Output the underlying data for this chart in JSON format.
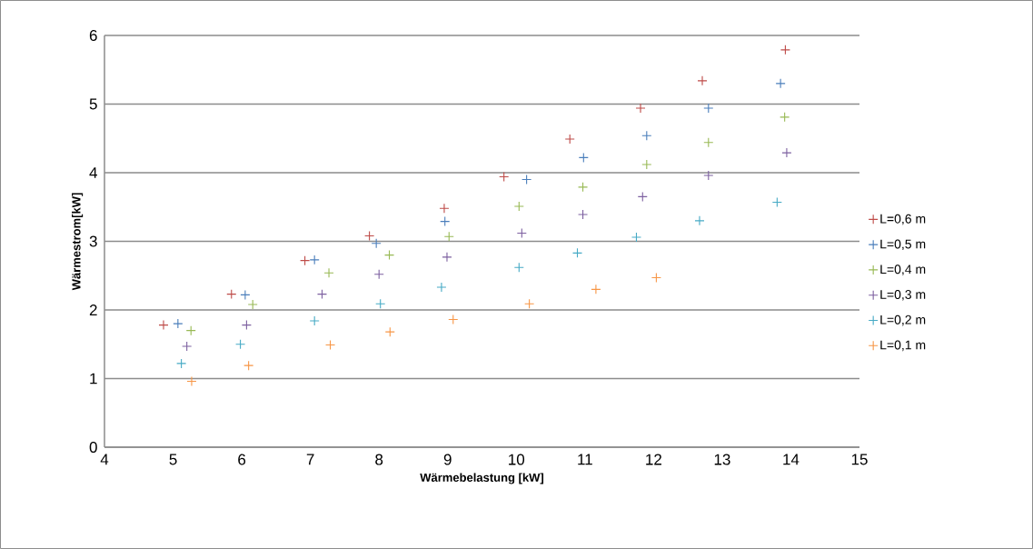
{
  "chart_data": {
    "type": "scatter",
    "xlabel": "Wärmebelastung [kW]",
    "ylabel": "Wärmestrom[kW]",
    "xlim": [
      4,
      15
    ],
    "xticks": [
      4,
      5,
      6,
      7,
      8,
      9,
      10,
      11,
      12,
      13,
      14,
      15
    ],
    "ylim": [
      0,
      6
    ],
    "yticks": [
      0,
      1,
      2,
      3,
      4,
      5,
      6
    ],
    "grid": "y",
    "legend": "right",
    "marker": "cross",
    "series": [
      {
        "name": "L=0,6 m",
        "color": "#be4b48",
        "x": [
          4.86,
          5.85,
          6.92,
          7.86,
          8.95,
          9.82,
          10.78,
          11.81,
          12.71,
          13.92
        ],
        "values": [
          1.78,
          2.23,
          2.72,
          3.08,
          3.48,
          3.94,
          4.49,
          4.94,
          5.34,
          5.79
        ]
      },
      {
        "name": "L=0,5 m",
        "color": "#4a7ebb",
        "x": [
          5.07,
          6.05,
          7.06,
          7.96,
          8.96,
          10.15,
          10.98,
          11.9,
          12.8,
          13.85
        ],
        "values": [
          1.8,
          2.22,
          2.73,
          2.97,
          3.29,
          3.9,
          4.22,
          4.54,
          4.94,
          5.3
        ]
      },
      {
        "name": "L=0,4 m",
        "color": "#98b954",
        "x": [
          5.26,
          6.16,
          7.27,
          8.15,
          9.02,
          10.04,
          10.97,
          11.9,
          12.8,
          13.91
        ],
        "values": [
          1.7,
          2.08,
          2.54,
          2.8,
          3.07,
          3.51,
          3.79,
          4.12,
          4.44,
          4.81
        ]
      },
      {
        "name": "L=0,3 m",
        "color": "#7d60a0",
        "x": [
          5.2,
          6.07,
          7.17,
          8.0,
          8.99,
          10.08,
          10.97,
          11.84,
          12.8,
          13.94
        ],
        "values": [
          1.47,
          1.78,
          2.23,
          2.52,
          2.77,
          3.12,
          3.39,
          3.65,
          3.96,
          4.29
        ]
      },
      {
        "name": "L=0,2 m",
        "color": "#46aac5",
        "x": [
          5.12,
          5.98,
          7.06,
          8.02,
          8.91,
          10.04,
          10.89,
          11.75,
          12.67,
          13.8
        ],
        "values": [
          1.22,
          1.5,
          1.84,
          2.09,
          2.33,
          2.62,
          2.83,
          3.06,
          3.3,
          3.57
        ]
      },
      {
        "name": "L=0,1 m",
        "color": "#f79646",
        "x": [
          5.27,
          6.1,
          7.29,
          8.16,
          9.08,
          10.19,
          11.16,
          12.04
        ],
        "values": [
          0.96,
          1.19,
          1.49,
          1.68,
          1.86,
          2.09,
          2.3,
          2.47
        ]
      }
    ]
  }
}
